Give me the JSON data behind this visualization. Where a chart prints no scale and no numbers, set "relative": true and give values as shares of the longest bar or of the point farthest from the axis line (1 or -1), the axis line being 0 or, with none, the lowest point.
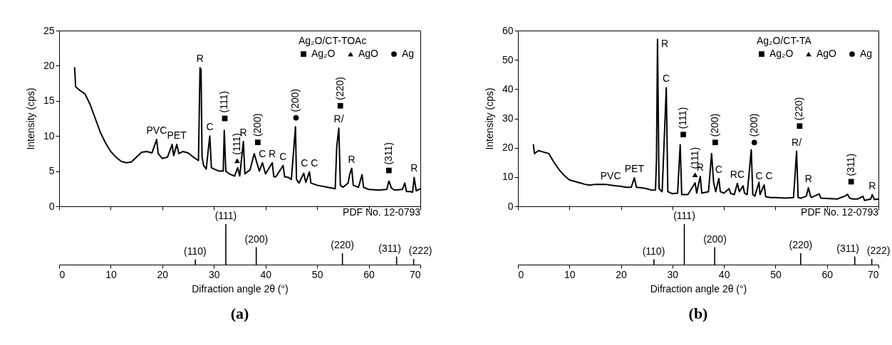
{
  "chart_data": [
    {
      "type": "line",
      "ylabel": "Intensity (cps)",
      "xlim": [
        0,
        70
      ],
      "xticks": [
        0,
        10,
        20,
        30,
        40,
        50,
        60,
        70
      ],
      "ylim": [
        0,
        25
      ],
      "yticks": [
        0,
        5,
        10,
        15,
        20,
        25
      ],
      "tick_labels": "y",
      "legend": "top right",
      "legend_title": "Ag₂O/CT-TOAc",
      "series": [
        {
          "color": "#000000",
          "x": [
            3,
            3.2,
            4,
            5,
            6,
            7,
            8,
            9,
            10,
            11,
            12,
            13,
            14,
            15,
            16,
            17,
            18,
            18.9,
            19.2,
            20,
            21,
            21.9,
            22.2,
            22.8,
            23.2,
            24,
            25,
            26,
            27,
            27.3,
            27.5,
            27.7,
            28,
            28.5,
            29.2,
            29.5,
            30,
            31,
            31.8,
            32,
            32.3,
            33,
            34,
            34.6,
            35,
            35.7,
            36,
            37,
            37.8,
            38.2,
            38.8,
            39.4,
            40,
            41.3,
            41.6,
            42,
            43.4,
            43.7,
            44.5,
            45,
            45.8,
            46,
            46.5,
            47.4,
            47.8,
            48.5,
            48.8,
            50,
            52,
            53.5,
            53.8,
            54.2,
            54.5,
            55,
            56,
            56.3,
            56.7,
            57,
            58,
            58.7,
            59,
            60,
            62,
            63.5,
            63.9,
            64.4,
            65,
            66.5,
            67,
            67.3,
            68,
            68.5,
            68.8,
            69.2,
            70
          ],
          "values": [
            19.7,
            17,
            16.5,
            16,
            14.5,
            12.5,
            10.5,
            9,
            7.8,
            7,
            6.4,
            6.2,
            6.3,
            7,
            7.7,
            7.8,
            7.6,
            9.5,
            7.5,
            6.8,
            7,
            8.8,
            7.2,
            8.8,
            7.5,
            7.8,
            7.6,
            7,
            6.5,
            19.7,
            19.5,
            7,
            5.8,
            5.3,
            10,
            5.5,
            5.3,
            5,
            5,
            10.8,
            5,
            4.6,
            4.3,
            5.5,
            4.3,
            9.2,
            4.6,
            5.2,
            7.5,
            6.5,
            5,
            6.2,
            4.6,
            6.2,
            4.2,
            4.2,
            5.8,
            4.2,
            4.1,
            3.8,
            11.3,
            3.8,
            3.3,
            4.7,
            3.4,
            4.9,
            3.3,
            3,
            2.7,
            2.5,
            8.5,
            11.1,
            3,
            2.7,
            3.3,
            4.5,
            5.4,
            3,
            2.7,
            4.5,
            2.7,
            2.4,
            2.3,
            2.4,
            3.6,
            2.6,
            2.3,
            2.4,
            3.3,
            2.1,
            2.1,
            2,
            4.1,
            2.2,
            2.5
          ]
        },
        {
          "name": "Ag₂O",
          "type": "scatter",
          "marker": "square",
          "color": "#000000",
          "x": [
            32.1,
            38.5,
            54.5,
            63.9
          ],
          "values": [
            12.5,
            9.1,
            14.3,
            5.1
          ]
        },
        {
          "name": "AgO",
          "type": "scatter",
          "marker": "triangle",
          "color": "#000000",
          "x": [
            34.5
          ],
          "values": [
            6.5
          ]
        },
        {
          "name": "Ag",
          "type": "scatter",
          "marker": "circle",
          "color": "#000000",
          "x": [
            45.9
          ],
          "values": [
            12.6
          ]
        }
      ],
      "annotations": [
        {
          "text": "(111)",
          "x": 32.1,
          "y": 12.5
        },
        {
          "text": "(200)",
          "x": 38.5,
          "y": 9.1
        },
        {
          "text": "(220)",
          "x": 54.5,
          "y": 14.3
        },
        {
          "text": "(311)",
          "x": 63.9,
          "y": 5.1
        },
        {
          "text": "(111)",
          "x": 34.5,
          "y": 6.5
        },
        {
          "text": "(200)",
          "x": 45.9,
          "y": 12.6
        },
        {
          "text": "R",
          "x": 27.3,
          "y": 19.7
        },
        {
          "text": "C",
          "x": 29.2,
          "y": 10
        },
        {
          "text": "PVC",
          "x": 18.9,
          "y": 9.5
        },
        {
          "text": "PET",
          "x": 22.8,
          "y": 8.8
        },
        {
          "text": "R",
          "x": 35.7,
          "y": 9.2
        },
        {
          "text": "C",
          "x": 39.4,
          "y": 6.2
        },
        {
          "text": "R",
          "x": 41.3,
          "y": 6.2
        },
        {
          "text": "C",
          "x": 43.4,
          "y": 5.8
        },
        {
          "text": "C C",
          "x": 48.5,
          "y": 4.9
        },
        {
          "text": "R/",
          "x": 54.2,
          "y": 11.1
        },
        {
          "text": "R",
          "x": 56.7,
          "y": 5.4
        },
        {
          "text": "R",
          "x": 68.8,
          "y": 4.1
        }
      ]
    },
    {
      "type": "bar",
      "title": "(a)",
      "xlabel": "Difraction angle 2θ (°)",
      "xlim": [
        0,
        70
      ],
      "xticks": [
        0,
        10,
        20,
        30,
        40,
        50,
        60,
        70
      ],
      "relative": true,
      "color": "#000000",
      "x": [
        26.4,
        32.3,
        38.2,
        54.9,
        65.4,
        68.7
      ],
      "values": [
        0.13,
        1,
        0.43,
        0.28,
        0.2,
        0.14
      ],
      "annotations": [
        "PDF No. 12-0793",
        {
          "text": "(110)",
          "x": 26.4,
          "y": 0.13
        },
        {
          "text": "(111)",
          "x": 32.3,
          "y": 1
        },
        {
          "text": "(200)",
          "x": 38.2,
          "y": 0.43
        },
        {
          "text": "(220)",
          "x": 54.9,
          "y": 0.28
        },
        {
          "text": "(311)",
          "x": 65.4,
          "y": 0.2
        },
        {
          "text": "(222)",
          "x": 68.7,
          "y": 0.14
        }
      ]
    },
    {
      "type": "line",
      "ylabel": "Intensity (cps)",
      "xlim": [
        0,
        70
      ],
      "xticks": [
        0,
        10,
        20,
        30,
        40,
        50,
        60,
        70
      ],
      "ylim": [
        0,
        60
      ],
      "yticks": [
        0,
        10,
        20,
        30,
        40,
        50,
        60
      ],
      "tick_labels": "y",
      "legend": "top right",
      "legend_title": "Ag₂O/CT-TA",
      "series": [
        {
          "color": "#000000",
          "x": [
            3,
            3.2,
            4,
            5,
            6,
            7,
            8,
            9,
            10,
            11,
            12,
            13,
            14,
            15,
            16,
            17,
            18,
            19,
            20,
            21,
            22,
            22.6,
            23,
            24,
            25,
            26,
            26.7,
            26.9,
            27.1,
            27.4,
            28,
            28.8,
            29.1,
            30,
            31,
            31.5,
            31.8,
            33,
            34.4,
            34.7,
            35.4,
            35.7,
            37,
            37.6,
            38,
            38.4,
            39,
            39.3,
            40,
            41,
            41.3,
            42,
            42.6,
            43,
            43.7,
            44,
            44.5,
            45.3,
            45.6,
            46,
            46.8,
            47,
            47.8,
            48.1,
            49,
            50,
            52,
            53.5,
            53.8,
            54.1,
            54.4,
            55,
            56,
            56.4,
            56.8,
            57,
            58.5,
            58.8,
            60,
            62,
            63.5,
            64,
            64.4,
            65,
            66,
            67,
            67.3,
            68.5,
            68.8,
            69.2,
            70
          ],
          "values": [
            21,
            18,
            19,
            18.5,
            18,
            15,
            12.5,
            10.5,
            9,
            8.5,
            8,
            7.5,
            7.2,
            7.5,
            7.5,
            7.5,
            7.2,
            7,
            6.8,
            6.5,
            6.5,
            9.7,
            6.5,
            6.3,
            6,
            5.5,
            5.5,
            16,
            57,
            6,
            5,
            40.5,
            5,
            4.3,
            4.5,
            21,
            4,
            4,
            8,
            4.5,
            10.2,
            4.5,
            5,
            18,
            8,
            5,
            9.5,
            5,
            4.5,
            6,
            4.4,
            4,
            7.8,
            5,
            7,
            4.5,
            4,
            19.3,
            4,
            3.5,
            8.2,
            4,
            7.3,
            3.3,
            3,
            3,
            2.8,
            3,
            10.5,
            18.8,
            3,
            2.8,
            3.5,
            6.3,
            3.5,
            3,
            4.2,
            2.8,
            2.7,
            2.5,
            3.5,
            4.1,
            2.8,
            2.5,
            2.5,
            3.4,
            2,
            2.5,
            4,
            2.3,
            2.5
          ]
        },
        {
          "name": "Ag₂O",
          "type": "scatter",
          "marker": "square",
          "color": "#000000",
          "x": [
            32.1,
            38.3,
            54.7,
            64.7
          ],
          "values": [
            24.5,
            21.8,
            27.4,
            8.4
          ]
        },
        {
          "name": "AgO",
          "type": "scatter",
          "marker": "triangle",
          "color": "#000000",
          "x": [
            34.4
          ],
          "values": [
            10.8
          ]
        },
        {
          "name": "Ag",
          "type": "scatter",
          "marker": "circle",
          "color": "#000000",
          "x": [
            45.9
          ],
          "values": [
            21.8
          ]
        }
      ],
      "annotations": [
        {
          "text": "(111)",
          "x": 32.1,
          "y": 24.5
        },
        {
          "text": "(200)",
          "x": 38.3,
          "y": 21.8
        },
        {
          "text": "(220)",
          "x": 54.7,
          "y": 27.4
        },
        {
          "text": "(311)",
          "x": 64.7,
          "y": 8.4
        },
        {
          "text": "(111)",
          "x": 34.4,
          "y": 10.8
        },
        {
          "text": "(200)",
          "x": 45.9,
          "y": 21.8
        },
        {
          "text": "R",
          "x": 27.1,
          "y": 57
        },
        {
          "text": "C",
          "x": 28.8,
          "y": 40.5
        },
        {
          "text": "PVC",
          "x": 18,
          "y": 7.2
        },
        {
          "text": "PET",
          "x": 22.6,
          "y": 9.7
        },
        {
          "text": "R",
          "x": 35.4,
          "y": 10.2
        },
        {
          "text": "C",
          "x": 39,
          "y": 9.5
        },
        {
          "text": "RC",
          "x": 42.6,
          "y": 7.8
        },
        {
          "text": "C C",
          "x": 47.8,
          "y": 7.3
        },
        {
          "text": "R/",
          "x": 54.1,
          "y": 18.8
        },
        {
          "text": "R",
          "x": 56.4,
          "y": 6.3
        },
        {
          "text": "R",
          "x": 68.8,
          "y": 4
        }
      ]
    },
    {
      "type": "bar",
      "title": "(b)",
      "xlabel": "Difraction angle 2θ (°)",
      "xlim": [
        0,
        70
      ],
      "xticks": [
        0,
        10,
        20,
        30,
        40,
        50,
        60,
        70
      ],
      "relative": true,
      "color": "#000000",
      "x": [
        26.4,
        32.3,
        38.2,
        54.9,
        65.4,
        68.7
      ],
      "values": [
        0.13,
        1,
        0.43,
        0.28,
        0.2,
        0.14
      ],
      "annotations": [
        "PDF No. 12-0793",
        {
          "text": "(110)",
          "x": 26.4,
          "y": 0.13
        },
        {
          "text": "(111)",
          "x": 32.3,
          "y": 1
        },
        {
          "text": "(200)",
          "x": 38.2,
          "y": 0.43
        },
        {
          "text": "(220)",
          "x": 54.9,
          "y": 0.28
        },
        {
          "text": "(311)",
          "x": 65.4,
          "y": 0.2
        },
        {
          "text": "(222)",
          "x": 68.7,
          "y": 0.14
        }
      ]
    }
  ]
}
